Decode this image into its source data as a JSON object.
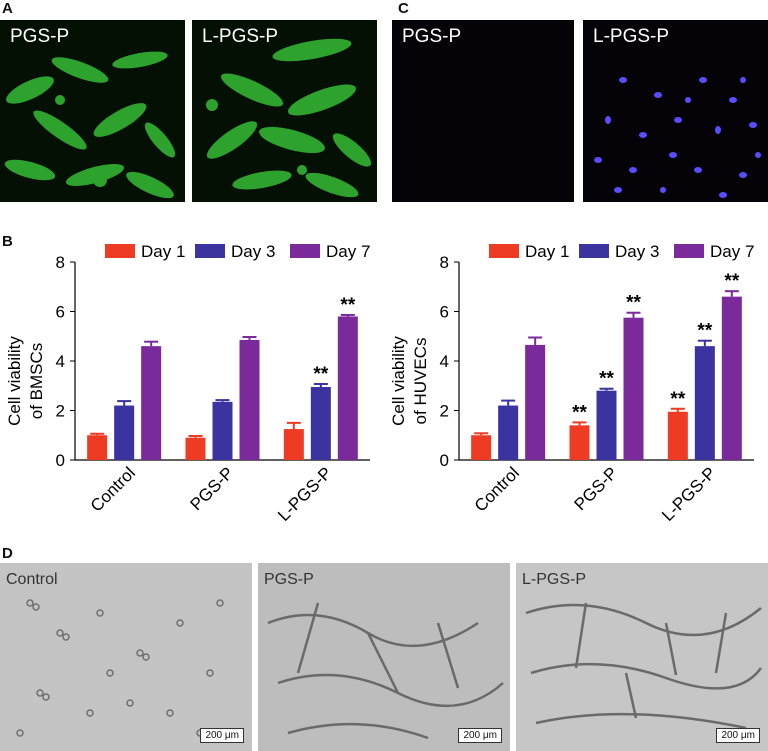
{
  "panels": {
    "a": {
      "letter": "A",
      "images": [
        {
          "label": "PGS-P"
        },
        {
          "label": "L-PGS-P"
        }
      ]
    },
    "c": {
      "letter": "C",
      "images": [
        {
          "label": "PGS-P"
        },
        {
          "label": "L-PGS-P"
        }
      ]
    },
    "b": {
      "letter": "B"
    },
    "d": {
      "letter": "D",
      "images": [
        {
          "label": "Control",
          "scale_bar": "200 μm"
        },
        {
          "label": "PGS-P",
          "scale_bar": "200 μm"
        },
        {
          "label": "L-PGS-P",
          "scale_bar": "200 μm"
        }
      ]
    }
  },
  "colors": {
    "day1": "#ee3b24",
    "day3": "#3a33a0",
    "day7": "#7b2a9b",
    "fluorescence_green": "#3bd33b",
    "dapi_blue": "#5a4cff"
  },
  "chart_data": [
    {
      "type": "bar",
      "ylabel": "Cell viability of BMSCs",
      "ylabel_lines": [
        "Cell viability",
        "of BMSCs"
      ],
      "categories": [
        "Control",
        "PGS-P",
        "L-PGS-P"
      ],
      "series": [
        {
          "name": "Day 1",
          "values": [
            1.0,
            0.9,
            1.25
          ],
          "errors": [
            0.06,
            0.07,
            0.25
          ],
          "sig": [
            "",
            "",
            ""
          ]
        },
        {
          "name": "Day 3",
          "values": [
            2.2,
            2.35,
            2.95
          ],
          "errors": [
            0.18,
            0.07,
            0.12
          ],
          "sig": [
            "",
            "",
            "**"
          ]
        },
        {
          "name": "Day 7",
          "values": [
            4.6,
            4.85,
            5.8
          ],
          "errors": [
            0.18,
            0.12,
            0.06
          ],
          "sig": [
            "",
            "",
            "**"
          ]
        }
      ],
      "ylim": [
        0,
        8
      ],
      "yticks": [
        0,
        2,
        4,
        6,
        8
      ],
      "legend": "top"
    },
    {
      "type": "bar",
      "ylabel": "Cell viability of HUVECs",
      "ylabel_lines": [
        "Cell viability",
        "of HUVECs"
      ],
      "categories": [
        "Control",
        "PGS-P",
        "L-PGS-P"
      ],
      "series": [
        {
          "name": "Day 1",
          "values": [
            1.0,
            1.4,
            1.95
          ],
          "errors": [
            0.08,
            0.12,
            0.12
          ],
          "sig": [
            "",
            "**",
            "**"
          ]
        },
        {
          "name": "Day 3",
          "values": [
            2.2,
            2.8,
            4.6
          ],
          "errors": [
            0.2,
            0.08,
            0.22
          ],
          "sig": [
            "",
            "**",
            "**"
          ]
        },
        {
          "name": "Day 7",
          "values": [
            4.65,
            5.75,
            6.6
          ],
          "errors": [
            0.3,
            0.2,
            0.22
          ],
          "sig": [
            "",
            "**",
            "**"
          ]
        }
      ],
      "ylim": [
        0,
        8
      ],
      "yticks": [
        0,
        2,
        4,
        6,
        8
      ],
      "legend": "top"
    }
  ]
}
